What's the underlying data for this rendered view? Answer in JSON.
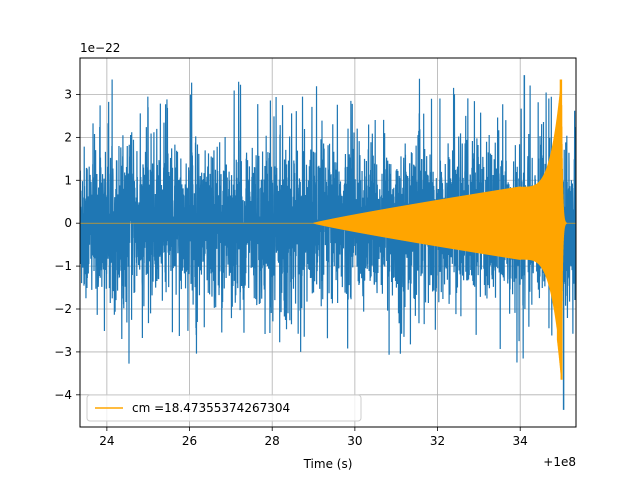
{
  "chart_data": {
    "type": "line",
    "title": "",
    "xlabel": "Time (s)",
    "ylabel": "",
    "x_offset_label": "+1e8",
    "y_multiplier_label": "1e−22",
    "xlim": [
      23.35,
      35.35
    ],
    "ylim": [
      -4.75,
      3.85
    ],
    "x_ticks": [
      24,
      26,
      28,
      30,
      32,
      34
    ],
    "y_ticks": [
      -4,
      -3,
      -2,
      -1,
      0,
      1,
      2,
      3
    ],
    "grid": true,
    "legend_position": "lower-left",
    "series": [
      {
        "type": "noise",
        "color": "#1f77b4",
        "x_range": [
          23.35,
          35.35
        ],
        "typical_amplitude": 1.6,
        "peak_max": 3.45,
        "peak_min": -4.35
      },
      {
        "name": "cm =18.47355374267304",
        "type": "chirp",
        "color": "#ffa500",
        "x_range": [
          23.35,
          35.35
        ],
        "merger_time": 35.0,
        "onset_time": 29.0,
        "amplitude_at_30": 0.1,
        "amplitude_at_32": 0.6,
        "amplitude_at_34": 0.85,
        "peak_amplitude": 3.35,
        "trough_amplitude": -3.65
      }
    ]
  }
}
